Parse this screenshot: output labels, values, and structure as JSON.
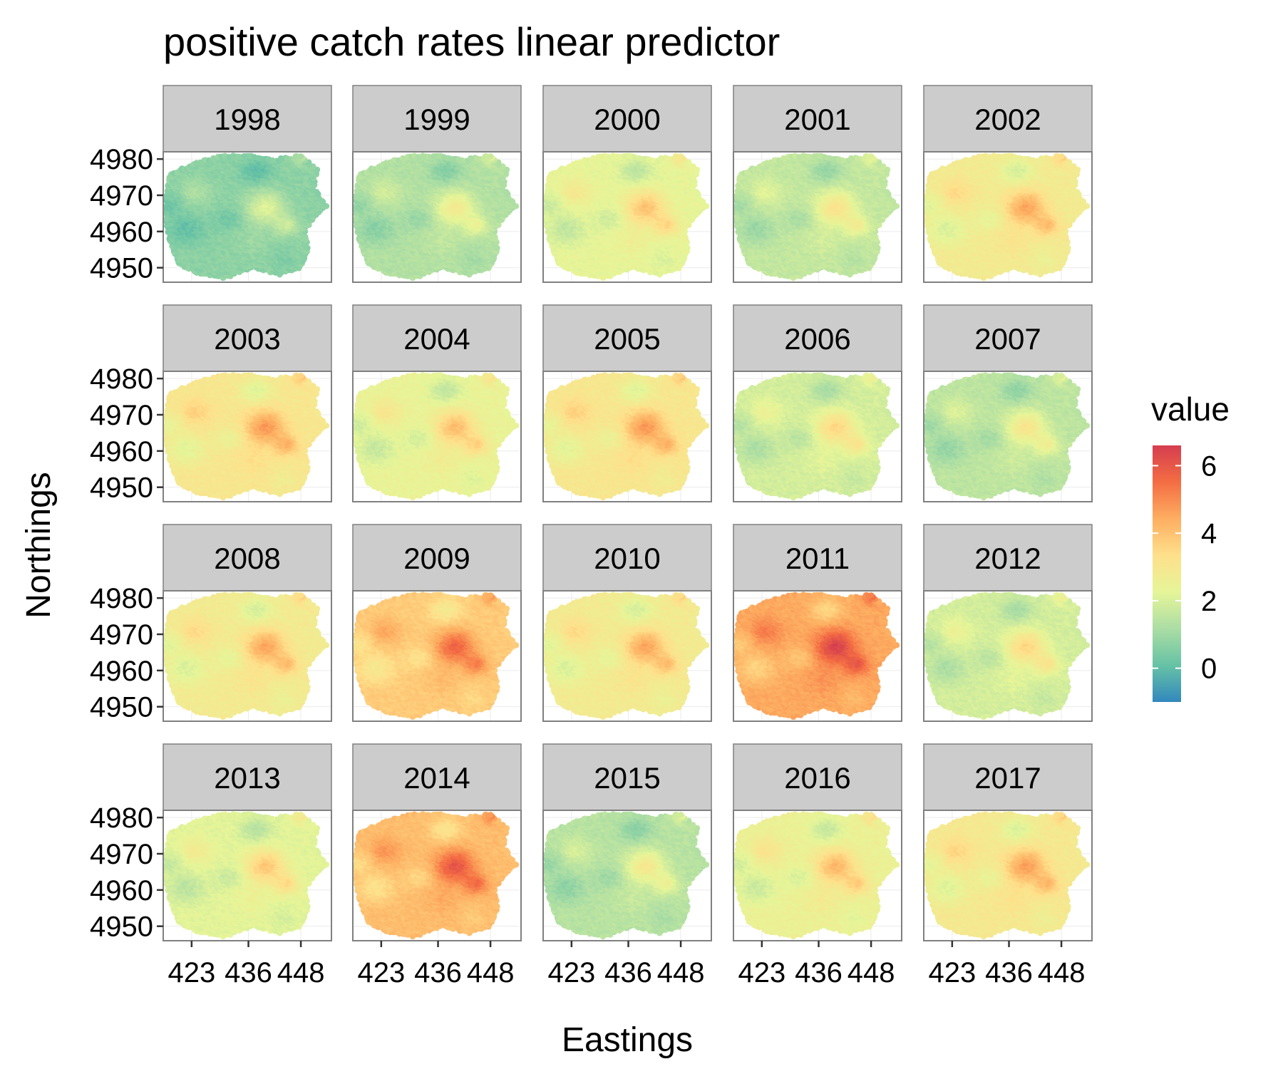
{
  "chart_data": {
    "type": "heatmap",
    "title": "positive catch rates linear predictor",
    "xlabel": "Eastings",
    "ylabel": "Northings",
    "x_ticks": [
      423,
      436,
      448
    ],
    "y_ticks": [
      4950,
      4960,
      4970,
      4980
    ],
    "xlim": [
      416.5,
      455
    ],
    "ylim": [
      4946,
      4982
    ],
    "legend": {
      "title": "value",
      "position": "right",
      "ticks": [
        0,
        2,
        4,
        6
      ],
      "range": [
        -1,
        6.6
      ],
      "colors": [
        "#3288bd",
        "#66c2a5",
        "#abdda4",
        "#e6f598",
        "#fee08b",
        "#fdae61",
        "#f46d43",
        "#d53e4f"
      ]
    },
    "facets": [
      {
        "year": "1998",
        "mean_value": 0.7
      },
      {
        "year": "1999",
        "mean_value": 1.3
      },
      {
        "year": "2000",
        "mean_value": 2.3
      },
      {
        "year": "2001",
        "mean_value": 1.6
      },
      {
        "year": "2002",
        "mean_value": 2.8
      },
      {
        "year": "2003",
        "mean_value": 3.0
      },
      {
        "year": "2004",
        "mean_value": 2.4
      },
      {
        "year": "2005",
        "mean_value": 3.0
      },
      {
        "year": "2006",
        "mean_value": 1.9
      },
      {
        "year": "2007",
        "mean_value": 1.5
      },
      {
        "year": "2008",
        "mean_value": 2.8
      },
      {
        "year": "2009",
        "mean_value": 3.8
      },
      {
        "year": "2010",
        "mean_value": 2.8
      },
      {
        "year": "2011",
        "mean_value": 4.5
      },
      {
        "year": "2012",
        "mean_value": 1.9
      },
      {
        "year": "2013",
        "mean_value": 2.2
      },
      {
        "year": "2014",
        "mean_value": 4.1
      },
      {
        "year": "2015",
        "mean_value": 1.4
      },
      {
        "year": "2016",
        "mean_value": 2.5
      },
      {
        "year": "2017",
        "mean_value": 2.9
      }
    ],
    "spatial_pattern": {
      "description_points_in_data_units": "relative anomalies added to facet mean_value",
      "hotspots": [
        {
          "x": 440,
          "y": 4967,
          "amplitude": 1.8,
          "radius": 3.2
        },
        {
          "x": 445,
          "y": 4962,
          "amplitude": 1.2,
          "radius": 2.0
        },
        {
          "x": 424,
          "y": 4971,
          "amplitude": 0.7,
          "radius": 2.5
        },
        {
          "x": 448,
          "y": 4980,
          "amplitude": 0.9,
          "radius": 1.0
        },
        {
          "x": 437,
          "y": 4958,
          "amplitude": 0.3,
          "radius": 3.0
        }
      ],
      "coldspots": [
        {
          "x": 438,
          "y": 4977,
          "amplitude": -0.9,
          "radius": 2.5
        },
        {
          "x": 422,
          "y": 4961,
          "amplitude": -0.8,
          "radius": 3.0
        },
        {
          "x": 432,
          "y": 4964,
          "amplitude": -0.6,
          "radius": 2.2
        },
        {
          "x": 418,
          "y": 4968,
          "amplitude": -0.6,
          "radius": 2.2
        },
        {
          "x": 444,
          "y": 4953,
          "amplitude": -0.3,
          "radius": 2.0
        }
      ]
    }
  }
}
